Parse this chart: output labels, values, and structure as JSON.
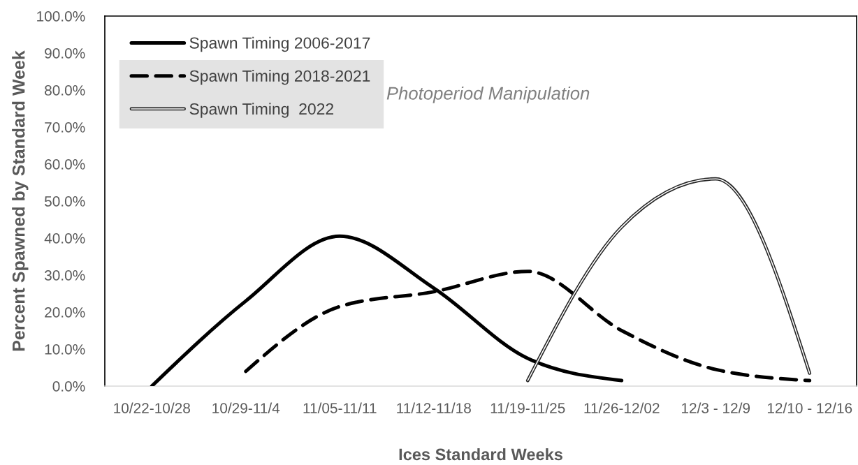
{
  "chart_data": {
    "type": "line",
    "categories": [
      "10/22-10/28",
      "10/29-11/4",
      "11/05-11/11",
      "11/12-11/18",
      "11/19-11/25",
      "11/26-12/02",
      "12/3 - 12/9",
      "12/10 - 12/16"
    ],
    "xlabel": "Ices Standard Weeks",
    "ylabel": "Percent Spawned by Standard Week",
    "ylim": [
      0,
      100
    ],
    "yticks": [
      {
        "value": 0,
        "label": "0.0%"
      },
      {
        "value": 10,
        "label": "10.0%"
      },
      {
        "value": 20,
        "label": "20.0%"
      },
      {
        "value": 30,
        "label": "30.0%"
      },
      {
        "value": 40,
        "label": "40.0%"
      },
      {
        "value": 50,
        "label": "50.0%"
      },
      {
        "value": 60,
        "label": "60.0%"
      },
      {
        "value": 70,
        "label": "70.0%"
      },
      {
        "value": 80,
        "label": "80.0%"
      },
      {
        "value": 90,
        "label": "90.0%"
      },
      {
        "value": 100,
        "label": "100.0%"
      }
    ],
    "series": [
      {
        "name": "Spawn Timing 2006-2017",
        "color": "#000000",
        "line_style": "solid",
        "values": [
          0,
          23,
          40.5,
          26.5,
          7.5,
          1.5,
          null,
          null
        ]
      },
      {
        "name": "Spawn Timing 2018-2021",
        "color": "#000000",
        "line_style": "dashed",
        "values": [
          null,
          4,
          21.5,
          25.5,
          31,
          15,
          4.5,
          1.5
        ]
      },
      {
        "name": "Spawn Timing  2022",
        "color": "#ffffff",
        "line_style": "solid",
        "values": [
          null,
          null,
          null,
          null,
          1.5,
          43,
          56,
          3.5
        ]
      }
    ],
    "legend": "top left",
    "grid": false,
    "annotations": [
      "Photoperiod Manipulation"
    ]
  }
}
